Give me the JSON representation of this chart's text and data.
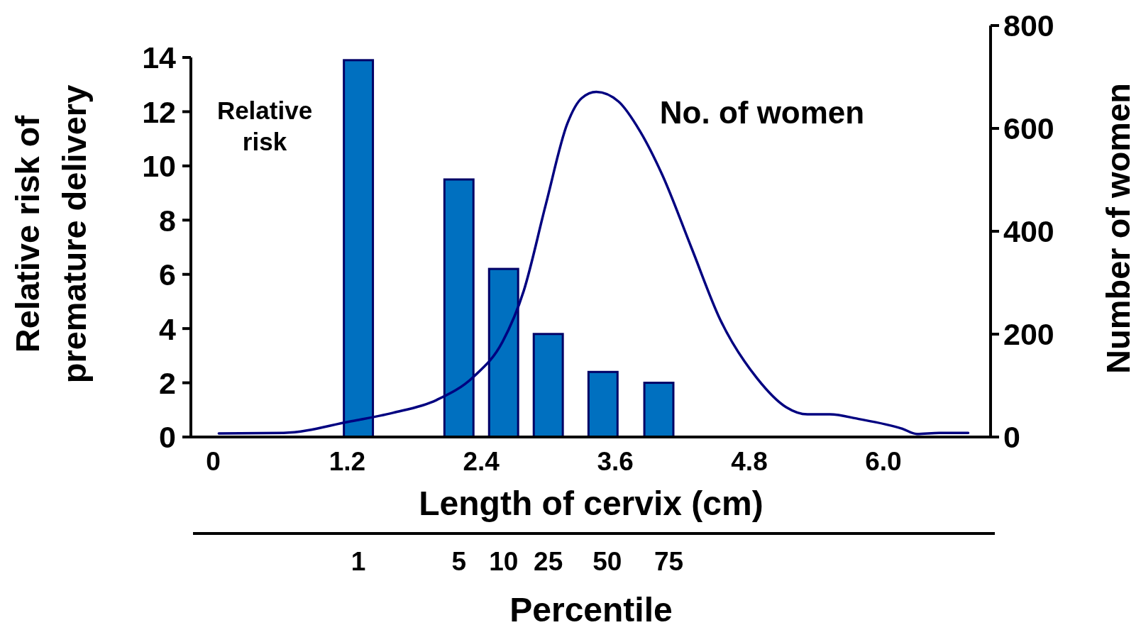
{
  "chart_data": {
    "type": "bar",
    "xlabel": "Length of cervix (cm)",
    "ylabel": "Relative risk of premature delivery",
    "y2label": "Number of women",
    "x2label": "Percentile",
    "xlim": [
      -0.2,
      6.96
    ],
    "xticks": [
      0,
      1.2,
      2.4,
      3.6,
      4.8,
      {
        "value": 6,
        "label": "6.0"
      }
    ],
    "ylim": [
      0,
      14
    ],
    "yticks": [
      0,
      2,
      4,
      6,
      8,
      10,
      12,
      14
    ],
    "y2lim": [
      0,
      800
    ],
    "y2ticks": [
      0,
      200,
      400,
      600,
      800
    ],
    "annotations": [
      "1",
      "5",
      "10",
      "25",
      "50",
      "75"
    ],
    "series": [
      {
        "name": "Relative risk",
        "color": "#0070c0",
        "x": [
          1.3,
          2.2,
          2.6,
          3.0,
          3.49,
          3.99
        ],
        "values": [
          13.9,
          9.5,
          6.2,
          3.8,
          2.4,
          2.0
        ]
      },
      {
        "name": "No. of women",
        "type": "line",
        "axis": "y2",
        "color": "#000080",
        "x": [
          0.05,
          0.63,
          1.22,
          1.61,
          2.0,
          2.33,
          2.59,
          2.78,
          2.98,
          3.17,
          3.3,
          3.43,
          3.63,
          3.82,
          4.02,
          4.28,
          4.54,
          4.87,
          5.13,
          5.32,
          5.52,
          5.78,
          6.17,
          6.3,
          6.5,
          6.76
        ],
        "values": [
          7,
          8,
          30,
          47,
          72,
          117,
          185,
          284,
          454,
          609,
          659,
          671,
          652,
          595,
          510,
          369,
          228,
          114,
          58,
          44,
          44,
          35,
          16,
          6,
          8,
          8
        ]
      }
    ],
    "grid": false,
    "marker": "none",
    "line_style": "solid"
  }
}
